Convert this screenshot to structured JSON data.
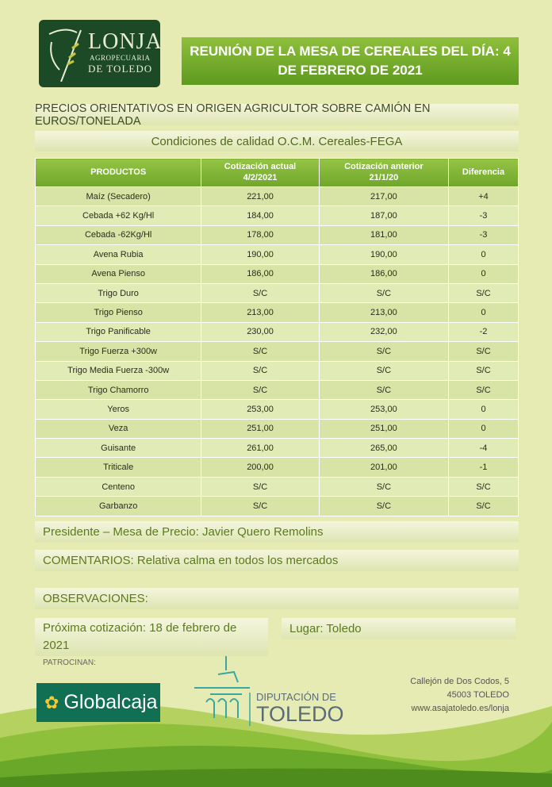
{
  "logo": {
    "line1": "LONJA",
    "line2": "AGROPECUARIA",
    "line3": "DE TOLEDO"
  },
  "title": "REUNIÓN DE LA MESA DE CEREALES DEL DÍA: 4 DE FEBRERO DE 2021",
  "subtitle": "PRECIOS ORIENTATIVOS EN ORIGEN AGRICULTOR SOBRE CAMIÓN EN EUROS/TONELADA",
  "conditions": "Condiciones de calidad O.C.M. Cereales-FEGA",
  "table": {
    "headers": [
      [
        "PRODUCTOS",
        ""
      ],
      [
        "Cotización actual",
        "4/2/2021"
      ],
      [
        "Cotización anterior",
        "21/1/20"
      ],
      [
        "Diferencia",
        ""
      ]
    ],
    "rows": [
      [
        "Maíz (Secadero)",
        "221,00",
        "217,00",
        "+4"
      ],
      [
        "Cebada +62 Kg/Hl",
        "184,00",
        "187,00",
        "-3"
      ],
      [
        "Cebada -62Kg/Hl",
        "178,00",
        "181,00",
        "-3"
      ],
      [
        "Avena Rubia",
        "190,00",
        "190,00",
        "0"
      ],
      [
        "Avena Pienso",
        "186,00",
        "186,00",
        "0"
      ],
      [
        "Trigo Duro",
        "S/C",
        "S/C",
        "S/C"
      ],
      [
        "Trigo Pienso",
        "213,00",
        "213,00",
        "0"
      ],
      [
        "Trigo Panificable",
        "230,00",
        "232,00",
        "-2"
      ],
      [
        "Trigo Fuerza +300w",
        "S/C",
        "S/C",
        "S/C"
      ],
      [
        "Trigo Media Fuerza -300w",
        "S/C",
        "S/C",
        "S/C"
      ],
      [
        "Trigo Chamorro",
        "S/C",
        "S/C",
        "S/C"
      ],
      [
        "Yeros",
        "253,00",
        "253,00",
        "0"
      ],
      [
        "Veza",
        "251,00",
        "251,00",
        "0"
      ],
      [
        "Guisante",
        "261,00",
        "265,00",
        "-4"
      ],
      [
        "Triticale",
        "200,00",
        "201,00",
        "-1"
      ],
      [
        "Centeno",
        "S/C",
        "S/C",
        "S/C"
      ],
      [
        "Garbanzo",
        "S/C",
        "S/C",
        "S/C"
      ]
    ]
  },
  "president": "Presidente – Mesa de Precio: Javier Quero Remolins",
  "comments": "COMENTARIOS: Relativa calma en todos los mercados",
  "observations": "OBSERVACIONES:",
  "next": "Próxima cotización: 18 de febrero de 2021",
  "place": "Lugar: Toledo",
  "sponsors_label": "PATROCINAN:",
  "sponsors": {
    "globalcaja": "Globalcaja",
    "diputacion1": "DIPUTACIÓN DE",
    "diputacion2": "TOLEDO"
  },
  "address": [
    "Callejón de Dos Codos, 5",
    "45003 TOLEDO",
    "www.asajatoledo.es/lonja"
  ]
}
